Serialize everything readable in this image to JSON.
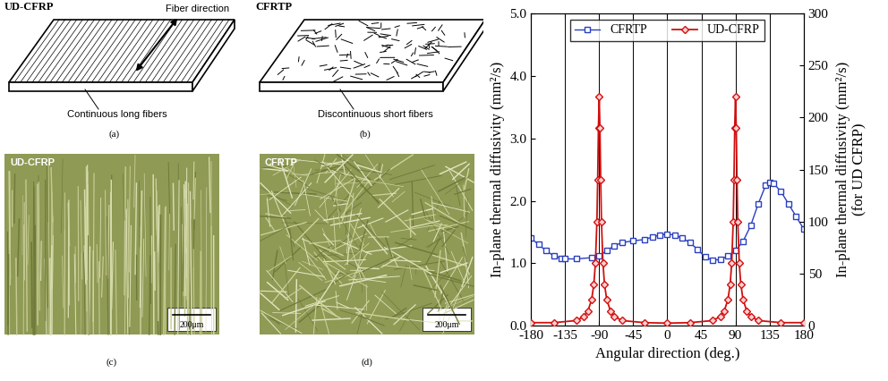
{
  "chart_data": {
    "type": "line",
    "xlabel": "Angular direction (deg.)",
    "ylabel": "In-plane thermal diffusivity (mm²/s)",
    "y2label": "In-plane thermal diffusivity (mm²/s)\n(for UD CFRP)",
    "xlim": [
      -180,
      180
    ],
    "xticks": [
      -180,
      -135,
      -90,
      -45,
      0,
      45,
      90,
      135,
      180
    ],
    "ylim": [
      0,
      5
    ],
    "yticks": [
      {
        "value": 0,
        "label": "0.0"
      },
      {
        "value": 1,
        "label": "1.0"
      },
      {
        "value": 2,
        "label": "2.0"
      },
      {
        "value": 3,
        "label": "3.0"
      },
      {
        "value": 4,
        "label": "4.0"
      },
      {
        "value": 5,
        "label": "5.0"
      }
    ],
    "y2lim": [
      0,
      300
    ],
    "y2ticks": [
      0,
      50,
      100,
      150,
      200,
      250,
      300
    ],
    "grid": true,
    "legend": "upper center",
    "series": [
      {
        "name": "CFRTP",
        "color": "#2a3fc0",
        "marker": "square",
        "line_style": "solid",
        "x": [
          -180,
          -170,
          -160,
          -150,
          -140,
          -135,
          -120,
          -100,
          -90,
          -80,
          -70,
          -60,
          -45,
          -30,
          -20,
          -10,
          0,
          10,
          20,
          30,
          40,
          50,
          60,
          70,
          80,
          90,
          100,
          110,
          120,
          130,
          135,
          140,
          150,
          160,
          170,
          180
        ],
        "values": [
          1.4,
          1.3,
          1.2,
          1.12,
          1.08,
          1.07,
          1.07,
          1.09,
          1.12,
          1.2,
          1.28,
          1.33,
          1.36,
          1.38,
          1.42,
          1.45,
          1.47,
          1.45,
          1.4,
          1.33,
          1.22,
          1.1,
          1.05,
          1.06,
          1.12,
          1.2,
          1.35,
          1.6,
          1.95,
          2.25,
          2.3,
          2.28,
          2.15,
          1.95,
          1.75,
          1.55
        ]
      },
      {
        "name": "UD-CFRP",
        "color": "#d01010",
        "marker": "diamond",
        "line_style": "solid",
        "axis": "y2",
        "x": [
          -180,
          -150,
          -120,
          -110,
          -105,
          -100,
          -97,
          -95,
          -93,
          -92,
          -91,
          -90,
          -89,
          -88,
          -87,
          -85,
          -83,
          -80,
          -75,
          -70,
          -60,
          -30,
          0,
          30,
          60,
          70,
          75,
          80,
          83,
          85,
          87,
          88,
          89,
          90,
          91,
          92,
          93,
          95,
          97,
          100,
          105,
          110,
          120,
          150,
          180
        ],
        "values": [
          3,
          3,
          5,
          9,
          14,
          25,
          40,
          60,
          100,
          140,
          190,
          220,
          190,
          140,
          100,
          60,
          40,
          25,
          14,
          9,
          5,
          3,
          2.5,
          3,
          5,
          9,
          14,
          25,
          40,
          60,
          100,
          140,
          190,
          220,
          190,
          140,
          100,
          60,
          40,
          25,
          14,
          9,
          5,
          3,
          3
        ]
      }
    ]
  },
  "diagram": {
    "panels": [
      {
        "label": "(a)",
        "title": "UD-CFRP",
        "annotations": [
          "Fiber direction",
          "Continuous long fibers"
        ]
      },
      {
        "label": "(b)",
        "title": "CFRTP",
        "annotations": [
          "Discontinuous short fibers"
        ]
      },
      {
        "label": "(c)",
        "title": "UD-CFRP",
        "scale_bar": "200μm"
      },
      {
        "label": "(d)",
        "title": "CFRTP",
        "scale_bar": "200μm"
      }
    ]
  }
}
